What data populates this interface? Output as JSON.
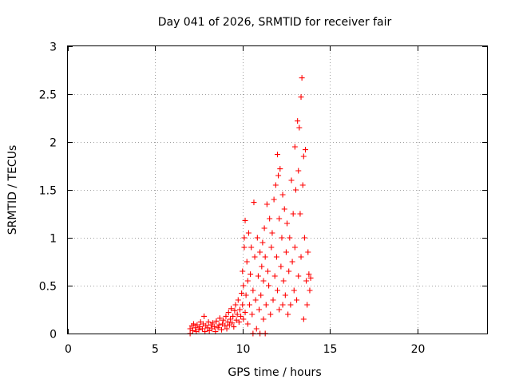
{
  "chart_data": {
    "type": "scatter",
    "title": "Day 041 of 2026, SRMTID for receiver fair",
    "xlabel": "GPS time / hours",
    "ylabel": "SRMTID / TECUs",
    "xlim": [
      0,
      24
    ],
    "ylim": [
      0,
      3
    ],
    "xticks": [
      0,
      5,
      10,
      15,
      20
    ],
    "xtick_labels": [
      "0",
      "5",
      "10",
      "15",
      "20"
    ],
    "yticks": [
      0,
      0.5,
      1,
      1.5,
      2,
      2.5,
      3
    ],
    "ytick_labels": [
      "0",
      "0.5",
      "1",
      "1.5",
      "2",
      "2.5",
      "3"
    ],
    "grid": true,
    "marker": "+",
    "color": "#ff0000",
    "series": [
      {
        "name": "SRMTID",
        "points": [
          [
            7.0,
            0.05
          ],
          [
            7.0,
            0.0
          ],
          [
            7.1,
            0.08
          ],
          [
            7.15,
            0.03
          ],
          [
            7.2,
            0.1
          ],
          [
            7.3,
            0.06
          ],
          [
            7.35,
            0.02
          ],
          [
            7.4,
            0.09
          ],
          [
            7.5,
            0.04
          ],
          [
            7.55,
            0.07
          ],
          [
            7.6,
            0.12
          ],
          [
            7.7,
            0.05
          ],
          [
            7.75,
            0.1
          ],
          [
            7.8,
            0.18
          ],
          [
            7.85,
            0.02
          ],
          [
            7.9,
            0.08
          ],
          [
            8.0,
            0.06
          ],
          [
            8.05,
            0.12
          ],
          [
            8.1,
            0.03
          ],
          [
            8.2,
            0.09
          ],
          [
            8.25,
            0.05
          ],
          [
            8.3,
            0.11
          ],
          [
            8.4,
            0.07
          ],
          [
            8.45,
            0.02
          ],
          [
            8.5,
            0.13
          ],
          [
            8.6,
            0.06
          ],
          [
            8.65,
            0.09
          ],
          [
            8.7,
            0.16
          ],
          [
            8.8,
            0.04
          ],
          [
            8.85,
            0.1
          ],
          [
            8.9,
            0.14
          ],
          [
            9.0,
            0.08
          ],
          [
            9.05,
            0.18
          ],
          [
            9.1,
            0.05
          ],
          [
            9.15,
            0.12
          ],
          [
            9.2,
            0.22
          ],
          [
            9.25,
            0.09
          ],
          [
            9.3,
            0.15
          ],
          [
            9.35,
            0.26
          ],
          [
            9.4,
            0.11
          ],
          [
            9.45,
            0.18
          ],
          [
            9.5,
            0.07
          ],
          [
            9.55,
            0.24
          ],
          [
            9.6,
            0.3
          ],
          [
            9.65,
            0.14
          ],
          [
            9.7,
            0.2
          ],
          [
            9.75,
            0.35
          ],
          [
            9.8,
            0.12
          ],
          [
            9.85,
            0.25
          ],
          [
            9.9,
            0.18
          ],
          [
            9.95,
            0.42
          ],
          [
            10.0,
            0.3
          ],
          [
            10.0,
            0.65
          ],
          [
            10.05,
            0.15
          ],
          [
            10.05,
            0.5
          ],
          [
            10.1,
            0.9
          ],
          [
            10.1,
            1.0
          ],
          [
            10.15,
            0.22
          ],
          [
            10.15,
            1.18
          ],
          [
            10.2,
            0.4
          ],
          [
            10.25,
            0.75
          ],
          [
            10.3,
            0.55
          ],
          [
            10.3,
            0.1
          ],
          [
            10.35,
            1.05
          ],
          [
            10.4,
            0.3
          ],
          [
            10.45,
            0.62
          ],
          [
            10.5,
            0.9
          ],
          [
            10.55,
            0.2
          ],
          [
            10.6,
            0.0
          ],
          [
            10.6,
            0.45
          ],
          [
            10.65,
            1.37
          ],
          [
            10.7,
            0.8
          ],
          [
            10.75,
            0.35
          ],
          [
            10.8,
            0.05
          ],
          [
            10.85,
            1.0
          ],
          [
            10.9,
            0.6
          ],
          [
            10.95,
            0.25
          ],
          [
            11.0,
            0.85
          ],
          [
            11.0,
            0.0
          ],
          [
            11.05,
            0.4
          ],
          [
            11.1,
            0.7
          ],
          [
            11.15,
            0.95
          ],
          [
            11.2,
            0.15
          ],
          [
            11.2,
            0.55
          ],
          [
            11.25,
            1.1
          ],
          [
            11.3,
            0.0
          ],
          [
            11.3,
            0.8
          ],
          [
            11.35,
            0.3
          ],
          [
            11.4,
            1.35
          ],
          [
            11.45,
            0.65
          ],
          [
            11.5,
            0.5
          ],
          [
            11.55,
            1.2
          ],
          [
            11.6,
            0.2
          ],
          [
            11.65,
            0.9
          ],
          [
            11.7,
            1.05
          ],
          [
            11.75,
            0.35
          ],
          [
            11.8,
            1.4
          ],
          [
            11.85,
            0.6
          ],
          [
            11.9,
            1.55
          ],
          [
            11.95,
            0.8
          ],
          [
            12.0,
            1.87
          ],
          [
            12.0,
            0.45
          ],
          [
            12.05,
            1.65
          ],
          [
            12.1,
            1.2
          ],
          [
            12.1,
            0.25
          ],
          [
            12.15,
            1.72
          ],
          [
            12.2,
            0.7
          ],
          [
            12.25,
            1.0
          ],
          [
            12.3,
            0.3
          ],
          [
            12.3,
            1.45
          ],
          [
            12.35,
            0.55
          ],
          [
            12.4,
            1.3
          ],
          [
            12.45,
            0.4
          ],
          [
            12.5,
            0.85
          ],
          [
            12.55,
            1.15
          ],
          [
            12.6,
            0.2
          ],
          [
            12.65,
            0.65
          ],
          [
            12.7,
            1.0
          ],
          [
            12.75,
            0.3
          ],
          [
            12.8,
            1.6
          ],
          [
            12.85,
            0.75
          ],
          [
            12.9,
            1.25
          ],
          [
            12.95,
            0.45
          ],
          [
            13.0,
            1.95
          ],
          [
            13.0,
            0.9
          ],
          [
            13.05,
            1.5
          ],
          [
            13.1,
            0.35
          ],
          [
            13.15,
            2.22
          ],
          [
            13.2,
            1.7
          ],
          [
            13.2,
            0.6
          ],
          [
            13.25,
            2.15
          ],
          [
            13.3,
            1.25
          ],
          [
            13.35,
            2.47
          ],
          [
            13.35,
            0.8
          ],
          [
            13.4,
            2.67
          ],
          [
            13.45,
            1.55
          ],
          [
            13.5,
            1.85
          ],
          [
            13.5,
            0.15
          ],
          [
            13.55,
            1.0
          ],
          [
            13.6,
            1.92
          ],
          [
            13.65,
            0.55
          ],
          [
            13.7,
            0.3
          ],
          [
            13.75,
            0.85
          ],
          [
            13.8,
            0.62
          ],
          [
            13.85,
            0.45
          ],
          [
            13.9,
            0.58
          ]
        ]
      }
    ]
  }
}
